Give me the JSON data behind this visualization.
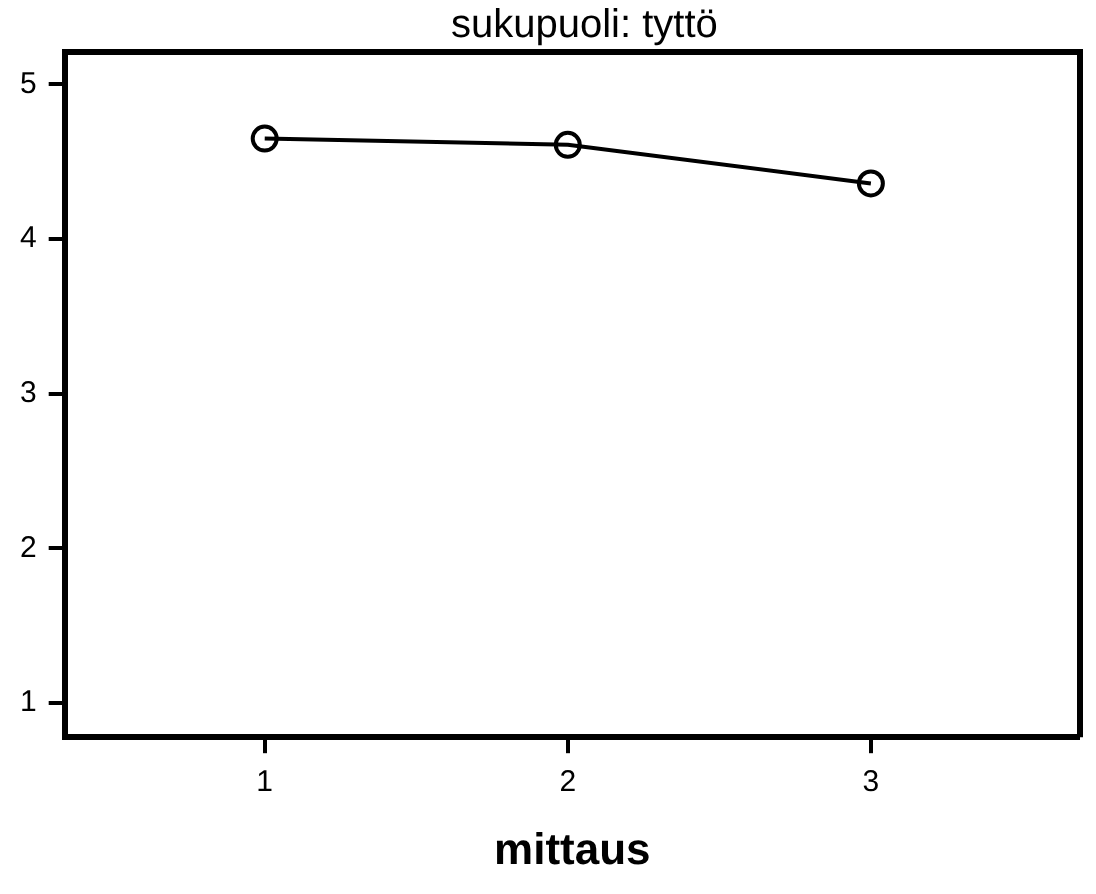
{
  "chart_data": {
    "type": "line",
    "title": "sukupuoli: tyttö",
    "xlabel": "mittaus",
    "x": [
      1,
      2,
      3
    ],
    "series": [
      {
        "color": "#000000",
        "values": [
          4.65,
          4.61,
          4.36
        ]
      }
    ],
    "xlim": [
      0.34,
      3.69
    ],
    "xticks": [
      1,
      2,
      3
    ],
    "ylim": [
      0.78,
      5.21
    ],
    "yticks": [
      1,
      2,
      3,
      4,
      5
    ],
    "marker": "circle",
    "line_style": "solid",
    "grid": false,
    "legend": false
  }
}
